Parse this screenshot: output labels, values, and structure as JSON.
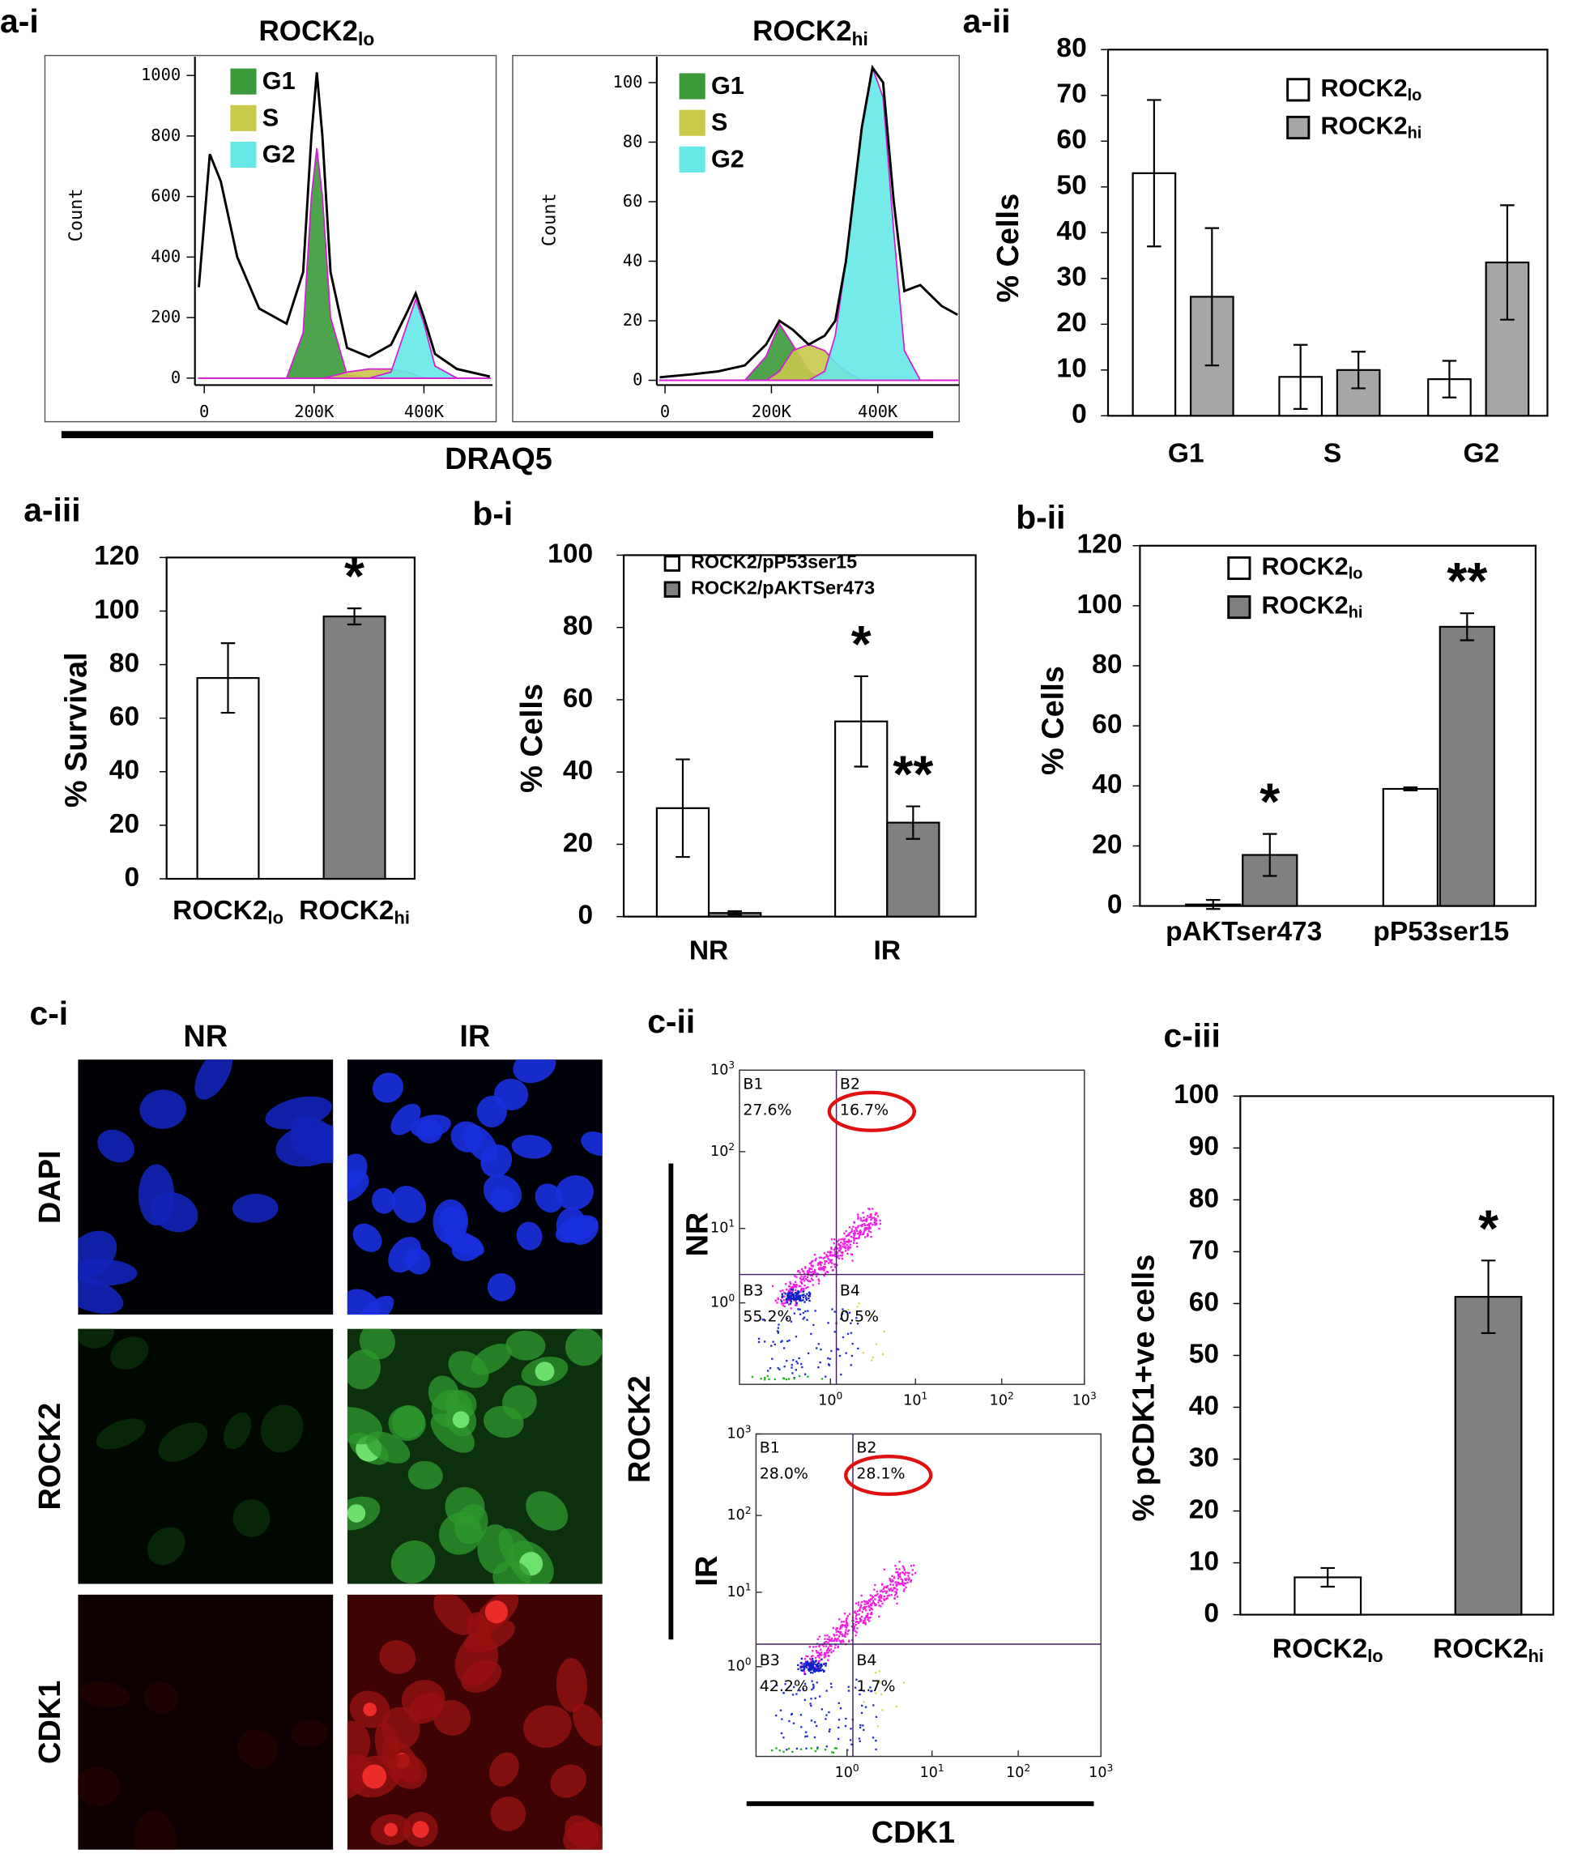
{
  "panel_labels": [
    "a-i",
    "a-ii",
    "a-iii",
    "b-i",
    "b-ii",
    "c-i",
    "c-ii",
    "c-iii"
  ],
  "a_i_xlabel": "DRAQ5",
  "chart_data": [
    {
      "type": "histogram-area",
      "title": [
        "ROCK2",
        "lo"
      ],
      "ylabel": "Count",
      "xlim": [
        -17000,
        525000
      ],
      "xticks": [
        0,
        {
          "value": 200000,
          "label": "200K"
        },
        {
          "value": 400000,
          "label": "400K"
        }
      ],
      "ylim": [
        -23,
        1062
      ],
      "yticks": [
        0,
        200,
        400,
        600,
        800,
        1000
      ],
      "x": [
        -10000,
        10000,
        30000,
        60000,
        100000,
        150000,
        180000,
        195000,
        205000,
        215000,
        230000,
        260000,
        300000,
        340000,
        370000,
        385000,
        400000,
        420000,
        460000,
        520000
      ],
      "outline": {
        "color": "#000000",
        "values": [
          300,
          740,
          650,
          400,
          230,
          180,
          350,
          800,
          1010,
          800,
          350,
          100,
          70,
          110,
          220,
          280,
          200,
          80,
          30,
          5
        ]
      },
      "series": [
        {
          "name": "G1",
          "color": "#3a9a3a",
          "values": [
            0,
            0,
            0,
            0,
            0,
            0,
            150,
            600,
            760,
            600,
            200,
            10,
            0,
            0,
            0,
            0,
            0,
            0,
            0,
            0
          ]
        },
        {
          "name": "S",
          "color": "#c8c84a",
          "values": [
            0,
            0,
            0,
            0,
            0,
            0,
            0,
            0,
            0,
            0,
            5,
            20,
            30,
            30,
            20,
            10,
            0,
            0,
            0,
            0
          ]
        },
        {
          "name": "G2",
          "color": "#66e8e8",
          "values": [
            0,
            0,
            0,
            0,
            0,
            0,
            0,
            0,
            0,
            0,
            0,
            0,
            0,
            20,
            180,
            260,
            180,
            40,
            0,
            0
          ]
        }
      ]
    },
    {
      "type": "histogram-area",
      "title": [
        "ROCK2",
        "hi"
      ],
      "ylabel": "Count",
      "xlim": [
        -15500,
        553000
      ],
      "xticks": [
        0,
        {
          "value": 200000,
          "label": "200K"
        },
        {
          "value": 400000,
          "label": "400K"
        }
      ],
      "ylim": [
        -1.6,
        108.7
      ],
      "yticks": [
        0,
        20,
        40,
        60,
        80,
        100
      ],
      "x": [
        -10000,
        50000,
        100000,
        150000,
        190000,
        215000,
        240000,
        270000,
        300000,
        320000,
        340000,
        370000,
        390000,
        410000,
        430000,
        450000,
        480000,
        520000,
        550000
      ],
      "outline": {
        "color": "#000000",
        "values": [
          1,
          2,
          3,
          5,
          12,
          20,
          17,
          12,
          15,
          20,
          40,
          85,
          105,
          100,
          60,
          30,
          32,
          25,
          22
        ]
      },
      "series": [
        {
          "name": "G1",
          "color": "#3a9a3a",
          "values": [
            0,
            0,
            0,
            0,
            8,
            19,
            12,
            3,
            0,
            0,
            0,
            0,
            0,
            0,
            0,
            0,
            0,
            0,
            0
          ]
        },
        {
          "name": "S",
          "color": "#c8c84a",
          "values": [
            0,
            0,
            0,
            0,
            0,
            3,
            10,
            12,
            10,
            6,
            3,
            0,
            0,
            0,
            0,
            0,
            0,
            0,
            0
          ]
        },
        {
          "name": "G2",
          "color": "#66e8e8",
          "values": [
            0,
            0,
            0,
            0,
            0,
            0,
            0,
            0,
            3,
            15,
            40,
            85,
            105,
            95,
            50,
            10,
            0,
            0,
            0
          ]
        }
      ]
    },
    {
      "type": "bar",
      "ylabel": "% Cells",
      "categories": [
        "G1",
        "S",
        "G2"
      ],
      "ylim": [
        0,
        80
      ],
      "yticks": [
        0,
        10,
        20,
        30,
        40,
        50,
        60,
        70,
        80
      ],
      "series": [
        {
          "name": "ROCK2",
          "subscript": "lo",
          "color": "#ffffff",
          "values": [
            53,
            8.5,
            8
          ],
          "errors": [
            16,
            7,
            4
          ]
        },
        {
          "name": "ROCK2",
          "subscript": "hi",
          "color": "#a6a6a6",
          "values": [
            26,
            10,
            33.5
          ],
          "errors": [
            15,
            4,
            12.5
          ]
        }
      ]
    },
    {
      "type": "bar",
      "ylabel": "% Survival",
      "categories": [
        "ROCK2",
        "ROCK2"
      ],
      "category_subs": [
        "lo",
        "hi"
      ],
      "ylim": [
        0,
        120
      ],
      "yticks": [
        0,
        20,
        40,
        60,
        80,
        100,
        120
      ],
      "values": [
        75,
        98
      ],
      "errors": [
        13,
        3
      ],
      "colors": [
        "#ffffff",
        "#808080"
      ],
      "value_annotations": [
        null,
        "*"
      ]
    },
    {
      "type": "bar",
      "ylabel": "% Cells",
      "categories": [
        "NR",
        "IR"
      ],
      "ylim": [
        0,
        100
      ],
      "yticks": [
        0,
        20,
        40,
        60,
        80,
        100
      ],
      "series": [
        {
          "name": "ROCK2/pP53ser15",
          "color": "#ffffff",
          "values": [
            30,
            54
          ],
          "errors": [
            13.5,
            12.5
          ],
          "value_annotations": [
            null,
            "*"
          ]
        },
        {
          "name": "ROCK2/pAKTSer473",
          "color": "#808080",
          "values": [
            1,
            26
          ],
          "errors": [
            0.5,
            4.5
          ],
          "value_annotations": [
            null,
            "**"
          ]
        }
      ]
    },
    {
      "type": "bar",
      "ylabel": "% Cells",
      "categories": [
        "pAKTser473",
        "pP53ser15"
      ],
      "ylim": [
        0,
        120
      ],
      "yticks": [
        0,
        20,
        40,
        60,
        80,
        100,
        120
      ],
      "series": [
        {
          "name": "ROCK2",
          "subscript": "lo",
          "color": "#ffffff",
          "values": [
            0.5,
            39
          ],
          "errors": [
            1.5,
            0.5
          ]
        },
        {
          "name": "ROCK2",
          "subscript": "hi",
          "color": "#808080",
          "values": [
            17,
            93
          ],
          "errors": [
            7,
            4.5
          ],
          "value_annotations": [
            "*",
            "**"
          ]
        }
      ]
    },
    {
      "type": "bar",
      "ylabel": "% pCDK1+ve cells",
      "categories": [
        "ROCK2",
        "ROCK2"
      ],
      "category_subs": [
        "lo",
        "hi"
      ],
      "ylim": [
        0,
        100
      ],
      "yticks": [
        0,
        10,
        20,
        30,
        40,
        50,
        60,
        70,
        80,
        90,
        100
      ],
      "values": [
        7.2,
        61.3
      ],
      "errors": [
        1.8,
        7
      ],
      "colors": [
        "#ffffff",
        "#808080"
      ],
      "value_annotations": [
        null,
        "*"
      ]
    }
  ],
  "micrographs": {
    "columns": [
      "NR",
      "IR"
    ],
    "rows": [
      "DAPI",
      "ROCK2",
      "CDK1"
    ]
  },
  "flow_plots": {
    "y_label": "ROCK2",
    "x_label": "CDK1",
    "axis_ticks": [
      {
        "base": "10",
        "exp": "0"
      },
      {
        "base": "10",
        "exp": "1"
      },
      {
        "base": "10",
        "exp": "2"
      },
      {
        "base": "10",
        "exp": "3"
      }
    ],
    "plots": [
      {
        "label": "NR",
        "quadrants": [
          [
            "B1",
            "27.6%"
          ],
          [
            "B2",
            "16.7%"
          ],
          [
            "B3",
            "55.2%"
          ],
          [
            "B4",
            "0.5%"
          ]
        ]
      },
      {
        "label": "IR",
        "quadrants": [
          [
            "B1",
            "28.0%"
          ],
          [
            "B2",
            "28.1%"
          ],
          [
            "B3",
            "42.2%"
          ],
          [
            "B4",
            "1.7%"
          ]
        ]
      }
    ]
  }
}
